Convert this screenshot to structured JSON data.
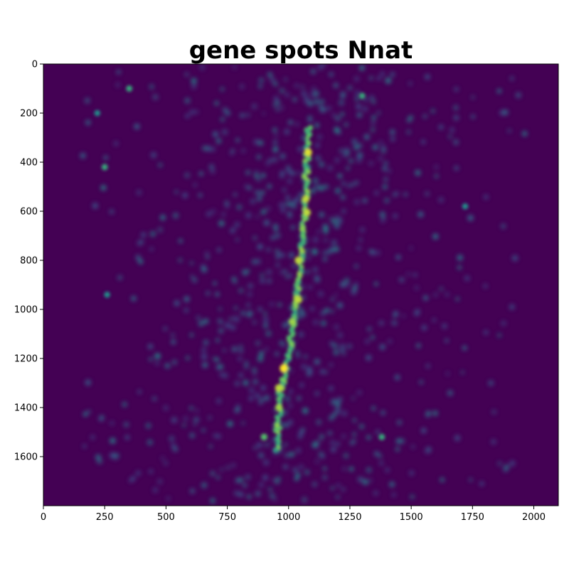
{
  "chart_data": {
    "type": "heatmap",
    "title": "gene spots Nnat",
    "xlabel": "",
    "ylabel": "",
    "xlim": [
      0,
      2100
    ],
    "ylim": [
      1800,
      0
    ],
    "x_ticks": [
      0,
      250,
      500,
      750,
      1000,
      1250,
      1500,
      1750,
      2000
    ],
    "y_ticks": [
      0,
      200,
      400,
      600,
      800,
      1000,
      1200,
      1400,
      1600
    ],
    "x_tick_labels": [
      "0",
      "250",
      "500",
      "750",
      "1000",
      "1250",
      "1500",
      "1750",
      "2000"
    ],
    "y_tick_labels": [
      "0",
      "200",
      "400",
      "600",
      "800",
      "1000",
      "1200",
      "1400",
      "1600"
    ],
    "colormap": "viridis",
    "colormap_stops": [
      "#440154",
      "#3b528b",
      "#21918c",
      "#5ec962",
      "#fde725"
    ],
    "background_color": "#440154",
    "grid": false,
    "legend": "none",
    "ridge": [
      {
        "x": 1080,
        "y": 260
      },
      {
        "x": 1075,
        "y": 400
      },
      {
        "x": 1070,
        "y": 560
      },
      {
        "x": 1060,
        "y": 700
      },
      {
        "x": 1045,
        "y": 850
      },
      {
        "x": 1030,
        "y": 980
      },
      {
        "x": 1005,
        "y": 1150
      },
      {
        "x": 985,
        "y": 1250
      },
      {
        "x": 965,
        "y": 1330
      },
      {
        "x": 960,
        "y": 1450
      },
      {
        "x": 950,
        "y": 1580
      }
    ],
    "hotspots": [
      {
        "x": 350,
        "y": 100,
        "intensity": 0.6
      },
      {
        "x": 1300,
        "y": 130,
        "intensity": 0.6
      },
      {
        "x": 220,
        "y": 200,
        "intensity": 0.5
      },
      {
        "x": 250,
        "y": 420,
        "intensity": 0.6
      },
      {
        "x": 1080,
        "y": 360,
        "intensity": 0.95
      },
      {
        "x": 1070,
        "y": 550,
        "intensity": 0.9
      },
      {
        "x": 1075,
        "y": 605,
        "intensity": 0.9
      },
      {
        "x": 1040,
        "y": 800,
        "intensity": 0.9
      },
      {
        "x": 1040,
        "y": 960,
        "intensity": 0.9
      },
      {
        "x": 1015,
        "y": 1050,
        "intensity": 0.85
      },
      {
        "x": 980,
        "y": 1240,
        "intensity": 1.0
      },
      {
        "x": 960,
        "y": 1320,
        "intensity": 0.9
      },
      {
        "x": 960,
        "y": 1400,
        "intensity": 0.85
      },
      {
        "x": 900,
        "y": 1520,
        "intensity": 0.7
      },
      {
        "x": 1380,
        "y": 1520,
        "intensity": 0.6
      },
      {
        "x": 1720,
        "y": 580,
        "intensity": 0.5
      },
      {
        "x": 260,
        "y": 940,
        "intensity": 0.5
      }
    ]
  }
}
